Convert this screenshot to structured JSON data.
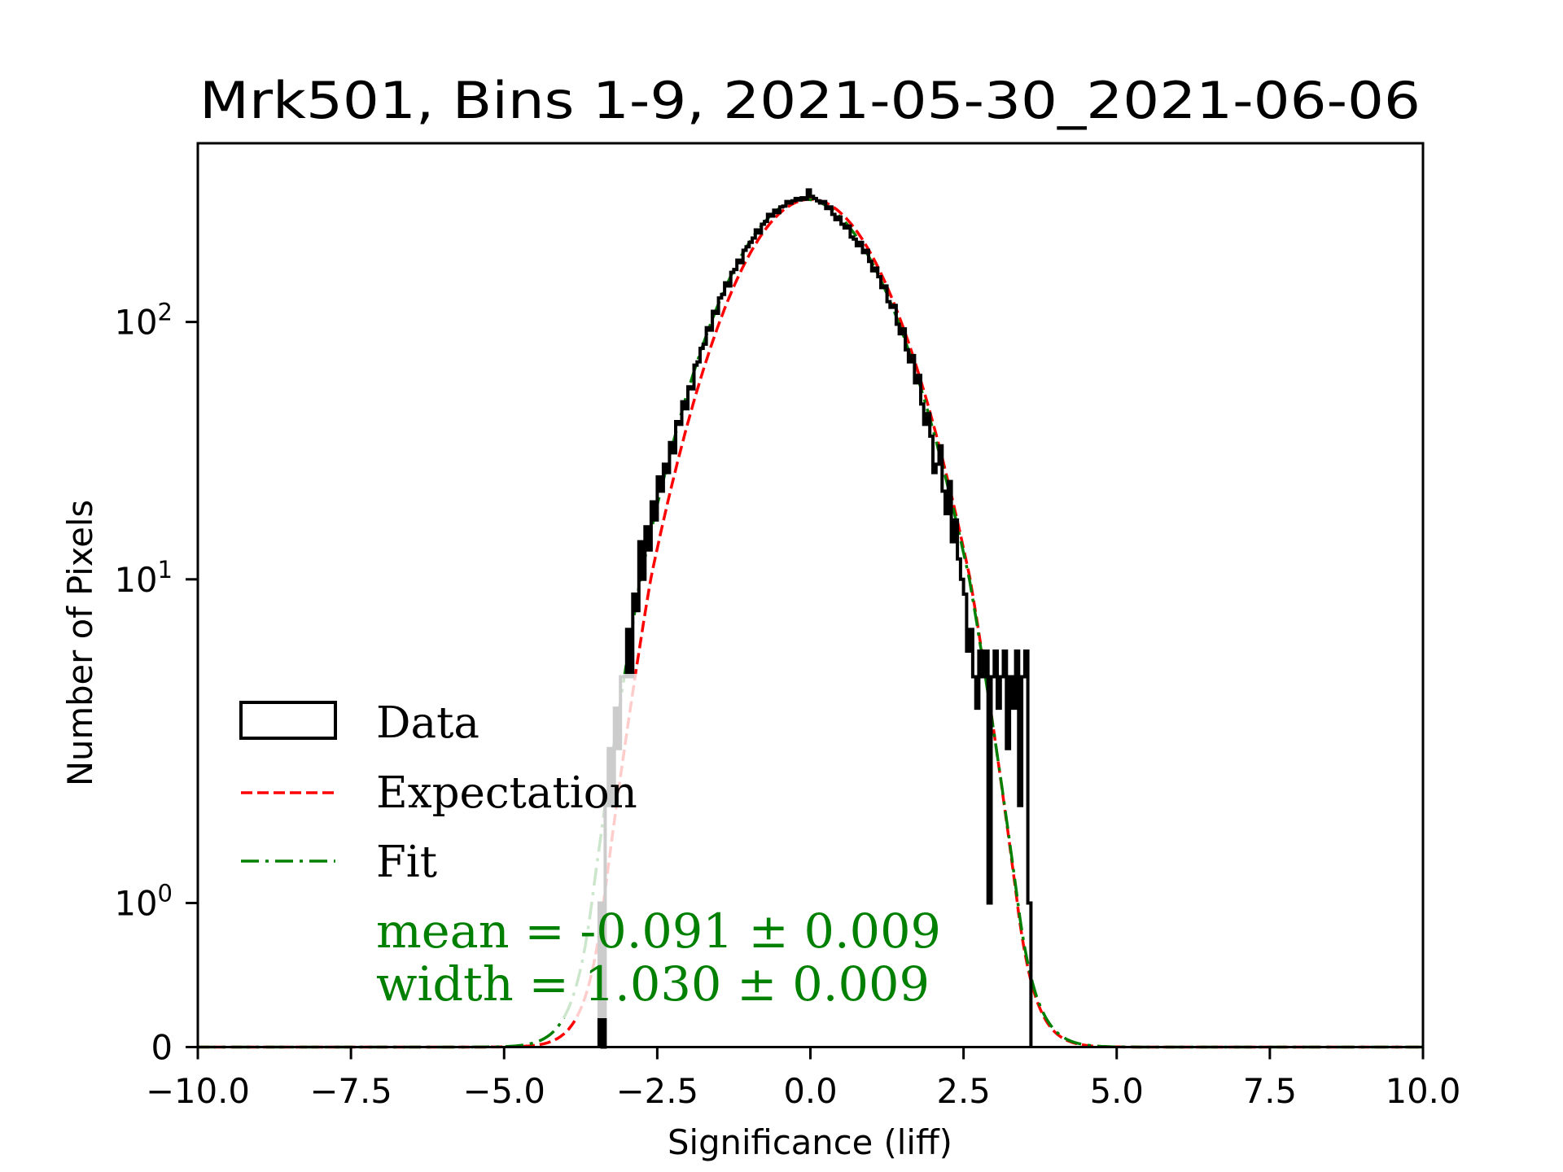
{
  "chart_data": {
    "type": "histogram",
    "title": "Mrk501, Bins 1-9, 2021-05-30_2021-06-06",
    "xlabel": "Significance (liff)",
    "ylabel": "Number of Pixels",
    "xlim": [
      -10,
      10
    ],
    "yscale": "symlog",
    "ylim": [
      0,
      495
    ],
    "x_ticks": [
      -10,
      -7.5,
      -5,
      -2.5,
      0,
      2.5,
      5,
      7.5,
      10
    ],
    "x_tick_labels": [
      "−10.0",
      "−7.5",
      "−5.0",
      "−2.5",
      "0.0",
      "2.5",
      "5.0",
      "7.5",
      "10.0"
    ],
    "y_ticks": [
      {
        "value": 0,
        "base": "0",
        "exp": ""
      },
      {
        "value": 1,
        "base": "10",
        "exp": "0"
      },
      {
        "value": 10,
        "base": "10",
        "exp": "1"
      },
      {
        "value": 100,
        "base": "10",
        "exp": "2"
      }
    ],
    "histogram": {
      "name": "Data",
      "bin_start": -3.45,
      "bin_width": 0.05,
      "counts": [
        1,
        0,
        2,
        3,
        2,
        4,
        3,
        5,
        5,
        7,
        5,
        9,
        8,
        14,
        10,
        16,
        13,
        20,
        17,
        25,
        22,
        28,
        26,
        34,
        31,
        41,
        40,
        49,
        46,
        56,
        55,
        68,
        70,
        79,
        82,
        95,
        93,
        110,
        108,
        124,
        128,
        142,
        138,
        156,
        160,
        174,
        170,
        190,
        196,
        204,
        212,
        228,
        222,
        240,
        246,
        262,
        258,
        272,
        266,
        280,
        282,
        294,
        290,
        296,
        302,
        298,
        304,
        300,
        326,
        308,
        302,
        296,
        290,
        294,
        276,
        280,
        262,
        250,
        256,
        240,
        232,
        236,
        214,
        210,
        198,
        204,
        186,
        190,
        172,
        158,
        162,
        150,
        136,
        138,
        120,
        114,
        116,
        98,
        90,
        94,
        78,
        70,
        74,
        58,
        62,
        48,
        40,
        44,
        36,
        26,
        28,
        33,
        22,
        18,
        24,
        14,
        17,
        12,
        10,
        9,
        6,
        7,
        5,
        4,
        6,
        5,
        6,
        1,
        5,
        6,
        4,
        5,
        6,
        3,
        5,
        4,
        6,
        2,
        5,
        6,
        1
      ],
      "color": "#000000"
    },
    "series": [
      {
        "name": "Expectation",
        "model": "gaussian",
        "mean": 0.0,
        "width": 1.0,
        "amplitude": 300,
        "color": "#ff0000",
        "style": "dashed"
      },
      {
        "name": "Fit",
        "model": "gaussian",
        "mean": -0.091,
        "width": 1.03,
        "amplitude": 300,
        "color": "#008000",
        "style": "dashdot"
      }
    ],
    "legend": {
      "placement": "lower-left",
      "entries": [
        "Data",
        "Expectation",
        "Fit"
      ]
    },
    "annotations": {
      "mean_text": "mean = -0.091 ± 0.009",
      "width_text": "width = 1.030 ± 0.009",
      "color": "#008000"
    },
    "grid": false
  }
}
